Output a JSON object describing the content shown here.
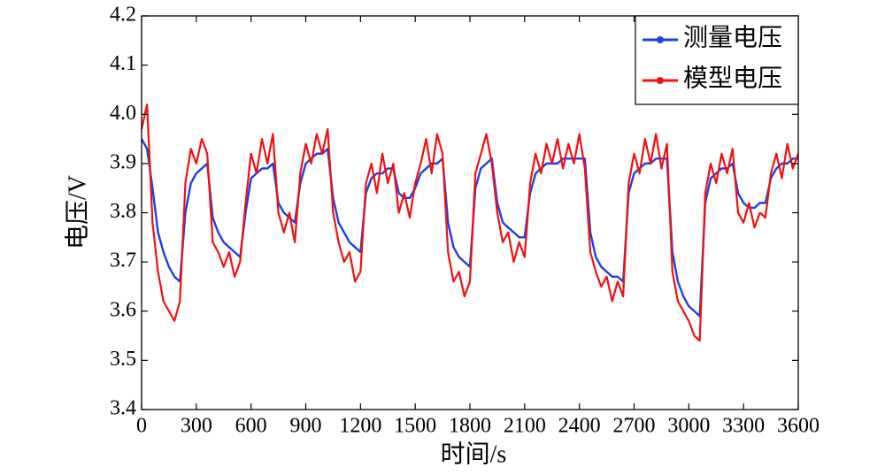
{
  "chart_data": {
    "type": "line",
    "xlabel": "时间/s",
    "ylabel": "电压/V",
    "x": [
      0,
      30,
      60,
      90,
      120,
      150,
      180,
      210,
      240,
      270,
      300,
      330,
      360,
      390,
      420,
      450,
      480,
      510,
      540,
      570,
      600,
      630,
      660,
      690,
      720,
      750,
      780,
      810,
      840,
      870,
      900,
      930,
      960,
      990,
      1020,
      1050,
      1080,
      1110,
      1140,
      1170,
      1200,
      1230,
      1260,
      1290,
      1320,
      1350,
      1380,
      1410,
      1440,
      1470,
      1500,
      1530,
      1560,
      1590,
      1620,
      1650,
      1680,
      1710,
      1740,
      1770,
      1800,
      1830,
      1860,
      1890,
      1920,
      1950,
      1980,
      2010,
      2040,
      2070,
      2100,
      2130,
      2160,
      2190,
      2220,
      2250,
      2280,
      2310,
      2340,
      2370,
      2400,
      2430,
      2460,
      2490,
      2520,
      2550,
      2580,
      2610,
      2640,
      2670,
      2700,
      2730,
      2760,
      2790,
      2820,
      2850,
      2880,
      2910,
      2940,
      2970,
      3000,
      3030,
      3060,
      3090,
      3120,
      3150,
      3180,
      3210,
      3240,
      3270,
      3300,
      3330,
      3360,
      3390,
      3420,
      3450,
      3480,
      3510,
      3540,
      3570,
      3600
    ],
    "series": [
      {
        "name": "测量电压",
        "color": "#1f3fe8",
        "values": [
          3.95,
          3.93,
          3.85,
          3.76,
          3.72,
          3.69,
          3.67,
          3.66,
          3.8,
          3.86,
          3.88,
          3.89,
          3.9,
          3.79,
          3.76,
          3.74,
          3.73,
          3.72,
          3.71,
          3.8,
          3.87,
          3.88,
          3.89,
          3.89,
          3.9,
          3.82,
          3.8,
          3.79,
          3.78,
          3.86,
          3.9,
          3.91,
          3.92,
          3.92,
          3.93,
          3.83,
          3.78,
          3.76,
          3.74,
          3.73,
          3.72,
          3.84,
          3.87,
          3.88,
          3.88,
          3.89,
          3.89,
          3.84,
          3.83,
          3.83,
          3.85,
          3.88,
          3.89,
          3.9,
          3.9,
          3.91,
          3.78,
          3.73,
          3.71,
          3.7,
          3.69,
          3.85,
          3.89,
          3.9,
          3.91,
          3.82,
          3.78,
          3.77,
          3.76,
          3.75,
          3.75,
          3.84,
          3.88,
          3.89,
          3.9,
          3.9,
          3.9,
          3.91,
          3.91,
          3.91,
          3.91,
          3.91,
          3.76,
          3.71,
          3.69,
          3.68,
          3.67,
          3.67,
          3.66,
          3.84,
          3.88,
          3.89,
          3.9,
          3.9,
          3.91,
          3.91,
          3.91,
          3.72,
          3.66,
          3.63,
          3.61,
          3.6,
          3.59,
          3.82,
          3.87,
          3.88,
          3.89,
          3.89,
          3.9,
          3.84,
          3.82,
          3.81,
          3.81,
          3.82,
          3.82,
          3.87,
          3.89,
          3.9,
          3.9,
          3.91,
          3.91
        ]
      },
      {
        "name": "模型电压",
        "color": "#f01010",
        "values": [
          3.97,
          4.02,
          3.78,
          3.68,
          3.62,
          3.6,
          3.58,
          3.62,
          3.86,
          3.93,
          3.9,
          3.95,
          3.92,
          3.74,
          3.72,
          3.69,
          3.72,
          3.67,
          3.7,
          3.82,
          3.92,
          3.88,
          3.95,
          3.9,
          3.96,
          3.8,
          3.76,
          3.8,
          3.74,
          3.88,
          3.94,
          3.9,
          3.96,
          3.92,
          3.97,
          3.8,
          3.74,
          3.7,
          3.72,
          3.66,
          3.68,
          3.86,
          3.9,
          3.84,
          3.92,
          3.86,
          3.9,
          3.8,
          3.84,
          3.79,
          3.86,
          3.9,
          3.95,
          3.88,
          3.96,
          3.92,
          3.72,
          3.66,
          3.68,
          3.63,
          3.66,
          3.88,
          3.92,
          3.96,
          3.9,
          3.8,
          3.74,
          3.76,
          3.7,
          3.74,
          3.71,
          3.86,
          3.92,
          3.88,
          3.94,
          3.9,
          3.95,
          3.89,
          3.94,
          3.9,
          3.96,
          3.89,
          3.72,
          3.68,
          3.65,
          3.67,
          3.62,
          3.66,
          3.63,
          3.86,
          3.92,
          3.88,
          3.95,
          3.9,
          3.96,
          3.89,
          3.94,
          3.68,
          3.62,
          3.6,
          3.58,
          3.55,
          3.54,
          3.84,
          3.9,
          3.86,
          3.92,
          3.88,
          3.93,
          3.8,
          3.78,
          3.82,
          3.77,
          3.8,
          3.79,
          3.88,
          3.92,
          3.87,
          3.94,
          3.89,
          3.92
        ]
      }
    ],
    "xlim": [
      0,
      3600
    ],
    "xticks": [
      0,
      300,
      600,
      900,
      1200,
      1500,
      1800,
      2100,
      2400,
      2700,
      3000,
      3300,
      3600
    ],
    "ylim": [
      3.4,
      4.2
    ],
    "yticks": [
      {
        "value": 3.4,
        "label": "3.4"
      },
      {
        "value": 3.5,
        "label": "3.5"
      },
      {
        "value": 3.6,
        "label": "3.6"
      },
      {
        "value": 3.7,
        "label": "3.7"
      },
      {
        "value": 3.8,
        "label": "3.8"
      },
      {
        "value": 3.9,
        "label": "3.9"
      },
      {
        "value": 4.0,
        "label": "4.0"
      },
      {
        "value": 4.1,
        "label": "4.1"
      },
      {
        "value": 4.2,
        "label": "4.2"
      }
    ],
    "grid": false,
    "legend": "upper right"
  }
}
